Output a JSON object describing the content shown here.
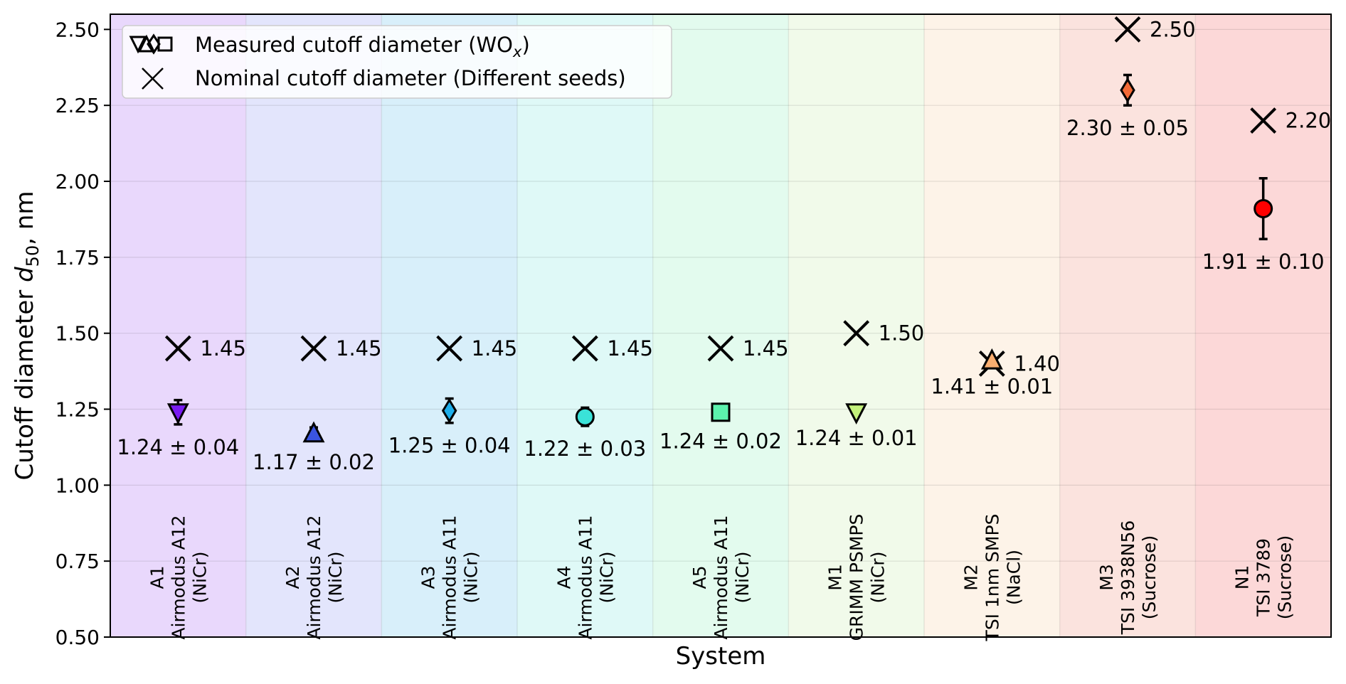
{
  "chart_data": {
    "type": "scatter",
    "title": "",
    "xlabel": "System",
    "ylabel_prefix": "Cutoff diameter ",
    "ylabel_var": "d",
    "ylabel_sub": "50",
    "ylabel_suffix": ", nm",
    "ylim": [
      0.5,
      2.55
    ],
    "yticks": [
      0.5,
      0.75,
      1.0,
      1.25,
      1.5,
      1.75,
      2.0,
      2.25,
      2.5
    ],
    "ytick_labels": [
      "0.50",
      "0.75",
      "1.00",
      "1.25",
      "1.50",
      "1.75",
      "2.00",
      "2.25",
      "2.50"
    ],
    "grid": true,
    "legend": {
      "placement": "top-left",
      "measured_prefix": "Measured cutoff diameter (WO",
      "measured_sub": "x",
      "measured_suffix": ")",
      "nominal": "Nominal cutoff diameter (Different seeds)"
    },
    "systems": [
      {
        "id": "A1",
        "instrument": "Airmodus A12",
        "seed": "(NiCr)",
        "band_color": "#e9d8fc",
        "marker": "triangle-down",
        "color": "#7a1bf2",
        "measured": 1.24,
        "error": 0.04,
        "err_low": 0.04,
        "err_high": 0.04,
        "measured_label": "1.24 ± 0.04",
        "nominal": 1.45,
        "nominal_label": "1.45"
      },
      {
        "id": "A2",
        "instrument": "Airmodus A12",
        "seed": "(NiCr)",
        "band_color": "#e3e5fc",
        "marker": "triangle-up",
        "color": "#3a54e0",
        "measured": 1.17,
        "error": 0.02,
        "err_low": 0.02,
        "err_high": 0.02,
        "measured_label": "1.17 ± 0.02",
        "nominal": 1.45,
        "nominal_label": "1.45"
      },
      {
        "id": "A3",
        "instrument": "Airmodus A11",
        "seed": "(NiCr)",
        "band_color": "#d8effa",
        "marker": "diamond",
        "color": "#1eaeea",
        "measured": 1.245,
        "error": 0.04,
        "err_low": 0.04,
        "err_high": 0.04,
        "measured_label": "1.25 ± 0.04",
        "nominal": 1.45,
        "nominal_label": "1.45"
      },
      {
        "id": "A4",
        "instrument": "Airmodus A11",
        "seed": "(NiCr)",
        "band_color": "#dff9f7",
        "marker": "circle",
        "color": "#3ae2d8",
        "measured": 1.225,
        "error": 0.03,
        "err_low": 0.03,
        "err_high": 0.03,
        "measured_label": "1.22 ± 0.03",
        "nominal": 1.45,
        "nominal_label": "1.45"
      },
      {
        "id": "A5",
        "instrument": "Airmodus A11",
        "seed": "(NiCr)",
        "band_color": "#e3fbee",
        "marker": "square",
        "color": "#5cf2ad",
        "measured": 1.24,
        "error": 0.02,
        "err_low": 0.02,
        "err_high": 0.02,
        "measured_label": "1.24 ± 0.02",
        "nominal": 1.45,
        "nominal_label": "1.45"
      },
      {
        "id": "M1",
        "instrument": "GRIMM PSMPS",
        "seed": "(NiCr)",
        "band_color": "#f1faea",
        "marker": "triangle-down",
        "color": "#c4f27c",
        "measured": 1.24,
        "error": 0.01,
        "err_low": 0.01,
        "err_high": 0.01,
        "measured_label": "1.24 ± 0.01",
        "nominal": 1.5,
        "nominal_label": "1.50"
      },
      {
        "id": "M2",
        "instrument": "TSI 1nm SMPS",
        "seed": "(NaCl)",
        "band_color": "#fdf3e8",
        "marker": "triangle-up",
        "color": "#f9ae70",
        "measured": 1.41,
        "error": 0.01,
        "err_low": 0.01,
        "err_high": 0.01,
        "measured_label": "1.41 ± 0.01",
        "nominal": 1.4,
        "nominal_label": "1.40"
      },
      {
        "id": "M3",
        "instrument": "TSI 3938N56",
        "seed": "(Sucrose)",
        "band_color": "#fbe3de",
        "marker": "diamond",
        "color": "#f26a37",
        "measured": 2.3,
        "error": 0.05,
        "err_low": 0.05,
        "err_high": 0.05,
        "measured_label": "2.30 ± 0.05",
        "nominal": 2.5,
        "nominal_label": "2.50"
      },
      {
        "id": "N1",
        "instrument": "TSI 3789",
        "seed": "(Sucrose)",
        "band_color": "#fcd8d8",
        "marker": "circle",
        "color": "#ff0000",
        "measured": 1.91,
        "error": 0.1,
        "err_low": 0.1,
        "err_high": 0.1,
        "measured_label": "1.91 ± 0.10",
        "nominal": 2.2,
        "nominal_label": "2.20"
      }
    ]
  }
}
